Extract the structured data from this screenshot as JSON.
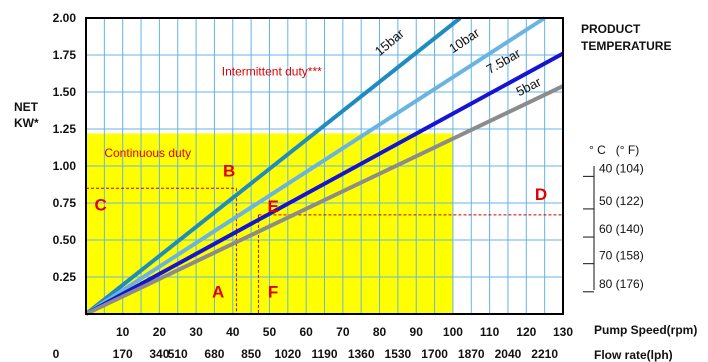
{
  "chart_data": {
    "type": "line",
    "ylabel_lines": [
      "NET",
      "KW*"
    ],
    "xlabel_speed": "Pump Speed(rpm)",
    "xlabel_flow": "Flow rate(lph)",
    "temperature_title_lines": [
      "PRODUCT",
      "TEMPERATURE"
    ],
    "temperature_header": "° C   (° F)",
    "ylim": [
      0,
      2.0
    ],
    "xlim": [
      0,
      130
    ],
    "grid": true,
    "y_ticks": [
      {
        "v": 0.25,
        "label": "0.25"
      },
      {
        "v": 0.5,
        "label": "0.50"
      },
      {
        "v": 0.75,
        "label": "0.75"
      },
      {
        "v": 1.0,
        "label": "1.00"
      },
      {
        "v": 1.25,
        "label": "1.25"
      },
      {
        "v": 1.5,
        "label": "1.50"
      },
      {
        "v": 1.75,
        "label": "1.75"
      },
      {
        "v": 2.0,
        "label": "2.00"
      }
    ],
    "x_ticks_speed": [
      {
        "v": 10,
        "label": "10"
      },
      {
        "v": 20,
        "label": "20"
      },
      {
        "v": 30,
        "label": "30"
      },
      {
        "v": 40,
        "label": "40"
      },
      {
        "v": 50,
        "label": "50"
      },
      {
        "v": 60,
        "label": "60"
      },
      {
        "v": 70,
        "label": "70"
      },
      {
        "v": 80,
        "label": "80"
      },
      {
        "v": 90,
        "label": "90"
      },
      {
        "v": 100,
        "label": "100"
      },
      {
        "v": 110,
        "label": "110"
      },
      {
        "v": 120,
        "label": "120"
      },
      {
        "v": 130,
        "label": "130"
      }
    ],
    "x_ticks_flow": [
      {
        "v": 0,
        "label": "0"
      },
      {
        "v": 10,
        "label": "170"
      },
      {
        "v": 20,
        "label": "340"
      },
      {
        "v": 25,
        "label": "510"
      },
      {
        "v": 35,
        "label": "680"
      },
      {
        "v": 45,
        "label": "850"
      },
      {
        "v": 55,
        "label": "1020"
      },
      {
        "v": 65,
        "label": "1190"
      },
      {
        "v": 75,
        "label": "1360"
      },
      {
        "v": 85,
        "label": "1530"
      },
      {
        "v": 95,
        "label": "1700"
      },
      {
        "v": 105,
        "label": "1870"
      },
      {
        "v": 115,
        "label": "2040"
      },
      {
        "v": 125,
        "label": "2210"
      }
    ],
    "regions": [
      {
        "label": "Continuous duty",
        "x": [
          0,
          100
        ],
        "y": [
          0,
          1.22
        ],
        "color": "#ffff00",
        "label_at": [
          5,
          1.06
        ]
      },
      {
        "label": "Intermittent duty***",
        "label_at": [
          37,
          1.61
        ]
      }
    ],
    "series": [
      {
        "name": "15bar",
        "color": "#1e8cbf",
        "width": 4,
        "points": [
          [
            0,
            0
          ],
          [
            102,
            2.0
          ]
        ],
        "label_at": [
          80,
          1.74
        ],
        "label_angle": -40
      },
      {
        "name": "10bar",
        "color": "#6ab4e2",
        "width": 4,
        "points": [
          [
            0,
            0
          ],
          [
            125,
            2.0
          ]
        ],
        "label_at": [
          100,
          1.76
        ],
        "label_angle": -34
      },
      {
        "name": "7.5bar",
        "color": "#1414d2",
        "width": 4,
        "points": [
          [
            0,
            0
          ],
          [
            130,
            1.76
          ]
        ],
        "label_at": [
          110,
          1.62
        ],
        "label_angle": -30
      },
      {
        "name": "5bar",
        "color": "#8c8c8c",
        "width": 4,
        "points": [
          [
            0,
            0
          ],
          [
            130,
            1.54
          ]
        ],
        "label_at": [
          118,
          1.47
        ],
        "label_angle": -27
      }
    ],
    "guides": [
      {
        "from": [
          0,
          0.85
        ],
        "to": [
          41,
          0.85
        ]
      },
      {
        "from": [
          41,
          0.85
        ],
        "to": [
          41,
          0
        ]
      },
      {
        "from": [
          47,
          0.67
        ],
        "to": [
          130,
          0.67
        ]
      },
      {
        "from": [
          47,
          0.67
        ],
        "to": [
          47,
          0
        ]
      }
    ],
    "points": [
      {
        "label": "A",
        "at": [
          36,
          0.11
        ]
      },
      {
        "label": "B",
        "at": [
          39,
          0.93
        ]
      },
      {
        "label": "C",
        "at": [
          4,
          0.7
        ]
      },
      {
        "label": "D",
        "at": [
          124,
          0.77
        ]
      },
      {
        "label": "E",
        "at": [
          51,
          0.69
        ]
      },
      {
        "label": "F",
        "at": [
          51,
          0.11
        ]
      }
    ],
    "temperatures": [
      {
        "label": "40 (104)",
        "y": 0.93
      },
      {
        "label": "50 (122)",
        "y": 0.71
      },
      {
        "label": "60 (140)",
        "y": 0.52
      },
      {
        "label": "70 (158)",
        "y": 0.34
      },
      {
        "label": "80 (176)",
        "y": 0.15
      }
    ],
    "colors": {
      "grid": "#64b4e6",
      "guide": "#cc0000",
      "annotation": "#e00000",
      "axis": "#000000"
    }
  }
}
